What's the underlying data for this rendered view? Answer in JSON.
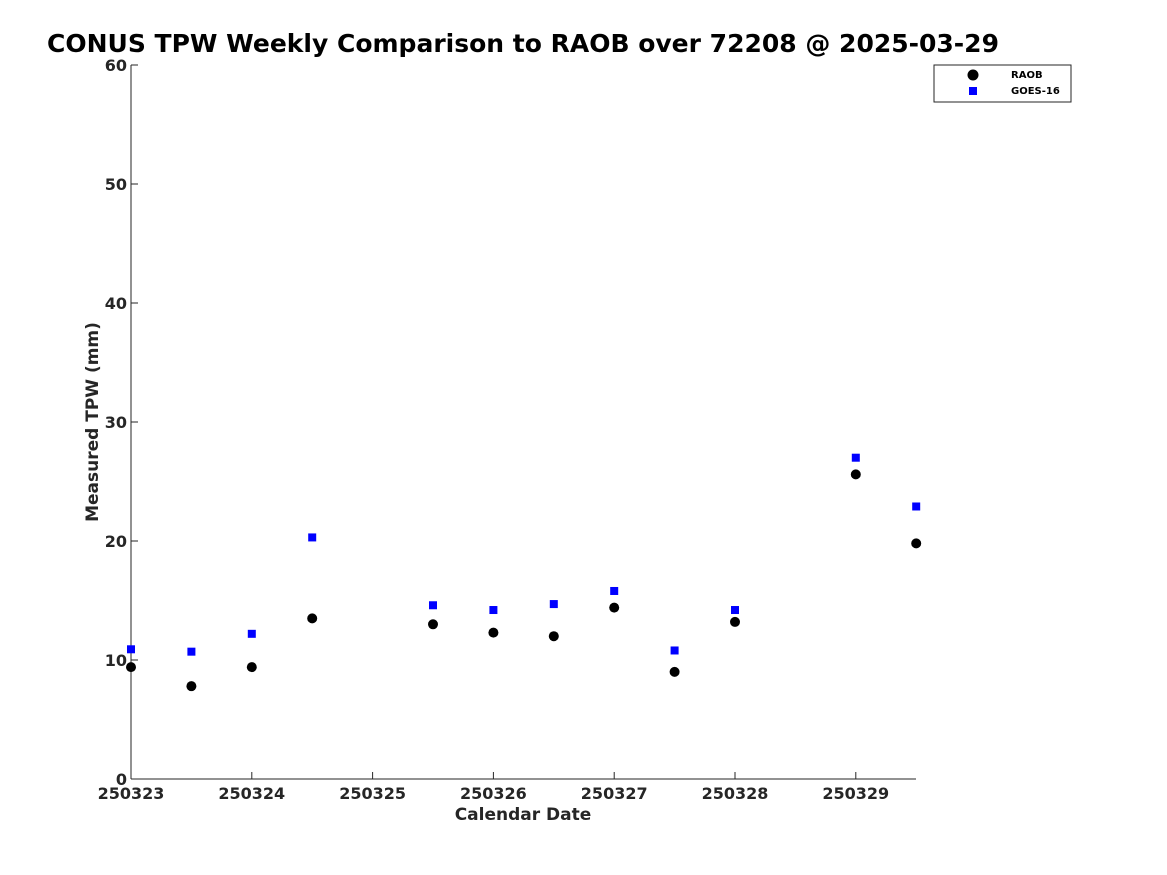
{
  "chart_data": {
    "type": "scatter",
    "title": "CONUS TPW Weekly Comparison to RAOB over 72208 @ 2025-03-29",
    "xlabel": "Calendar Date",
    "ylabel": "Measured TPW (mm)",
    "x_tick_labels": [
      "250323",
      "250324",
      "250325",
      "250326",
      "250327",
      "250328",
      "250329"
    ],
    "y_tick_labels": [
      "0",
      "10",
      "20",
      "30",
      "40",
      "50",
      "60"
    ],
    "ylim": [
      0,
      60
    ],
    "grid": false,
    "legend_position": "top-right",
    "series": [
      {
        "name": "RAOB",
        "marker": "circle",
        "color": "#000000",
        "x": [
          0,
          0.5,
          1,
          1.5,
          2.5,
          3,
          3.5,
          4,
          4.5,
          5,
          6,
          6.5
        ],
        "values": [
          9.4,
          7.8,
          9.4,
          13.5,
          13.0,
          12.3,
          12.0,
          14.4,
          9.0,
          13.2,
          25.6,
          19.8
        ]
      },
      {
        "name": "GOES-16",
        "marker": "square",
        "color": "#0000ff",
        "x": [
          0,
          0.5,
          1,
          1.5,
          2.5,
          3,
          3.5,
          4,
          4.5,
          5,
          6,
          6.5
        ],
        "values": [
          10.9,
          10.7,
          12.2,
          20.3,
          14.6,
          14.2,
          14.7,
          15.8,
          10.8,
          14.2,
          27.0,
          22.9
        ]
      }
    ]
  }
}
